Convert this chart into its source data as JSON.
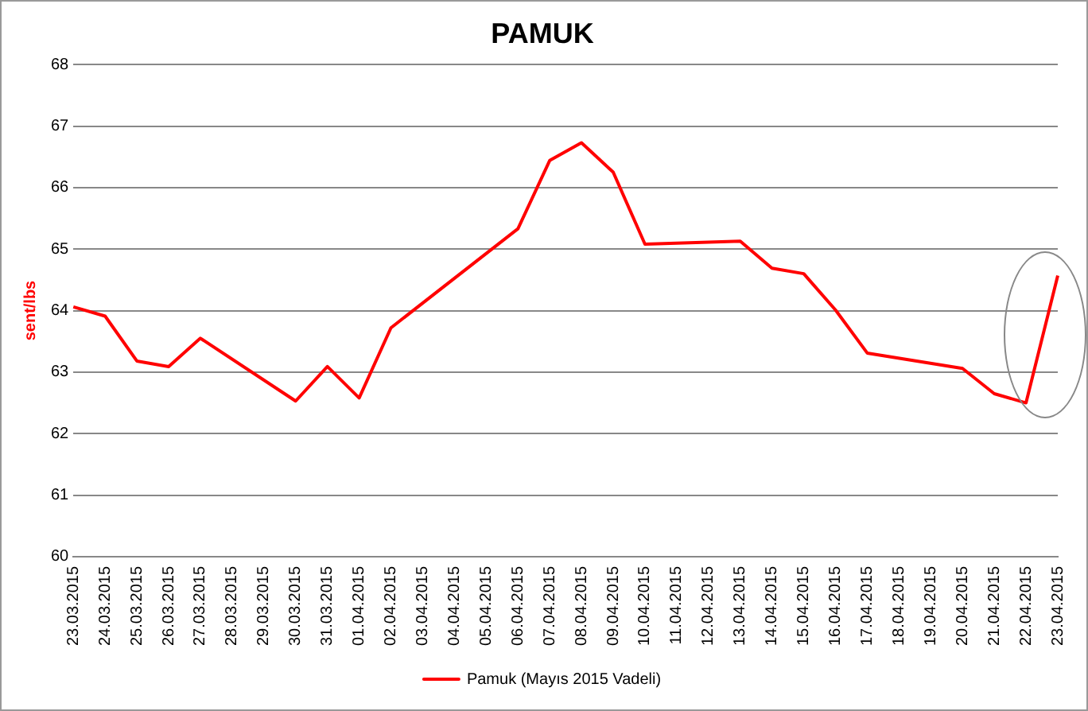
{
  "chart_data": {
    "type": "line",
    "title": "PAMUK",
    "ylabel": "sent/lbs",
    "categories": [
      "23.03.2015",
      "24.03.2015",
      "25.03.2015",
      "26.03.2015",
      "27.03.2015",
      "28.03.2015",
      "29.03.2015",
      "30.03.2015",
      "31.03.2015",
      "01.04.2015",
      "02.04.2015",
      "03.04.2015",
      "04.04.2015",
      "05.04.2015",
      "06.04.2015",
      "07.04.2015",
      "08.04.2015",
      "09.04.2015",
      "10.04.2015",
      "11.04.2015",
      "12.04.2015",
      "13.04.2015",
      "14.04.2015",
      "15.04.2015",
      "16.04.2015",
      "17.04.2015",
      "18.04.2015",
      "19.04.2015",
      "20.04.2015",
      "21.04.2015",
      "22.04.2015",
      "23.04.2015"
    ],
    "series": [
      {
        "name": "Pamuk (Mayıs 2015 Vadeli)",
        "color": "#ff0000",
        "values": [
          64.06,
          63.91,
          63.18,
          63.09,
          63.55,
          null,
          null,
          62.53,
          63.09,
          62.58,
          63.72,
          null,
          null,
          null,
          65.33,
          66.44,
          66.73,
          66.25,
          65.08,
          null,
          null,
          65.13,
          64.69,
          64.6,
          64.01,
          63.31,
          null,
          null,
          63.06,
          62.65,
          62.5,
          64.57
        ]
      }
    ],
    "ylim": [
      60,
      68
    ],
    "yticks": [
      60,
      61,
      62,
      63,
      64,
      65,
      66,
      67,
      68
    ],
    "grid": "y",
    "legend": "bottom",
    "marker": "none",
    "line_style": "solid"
  }
}
